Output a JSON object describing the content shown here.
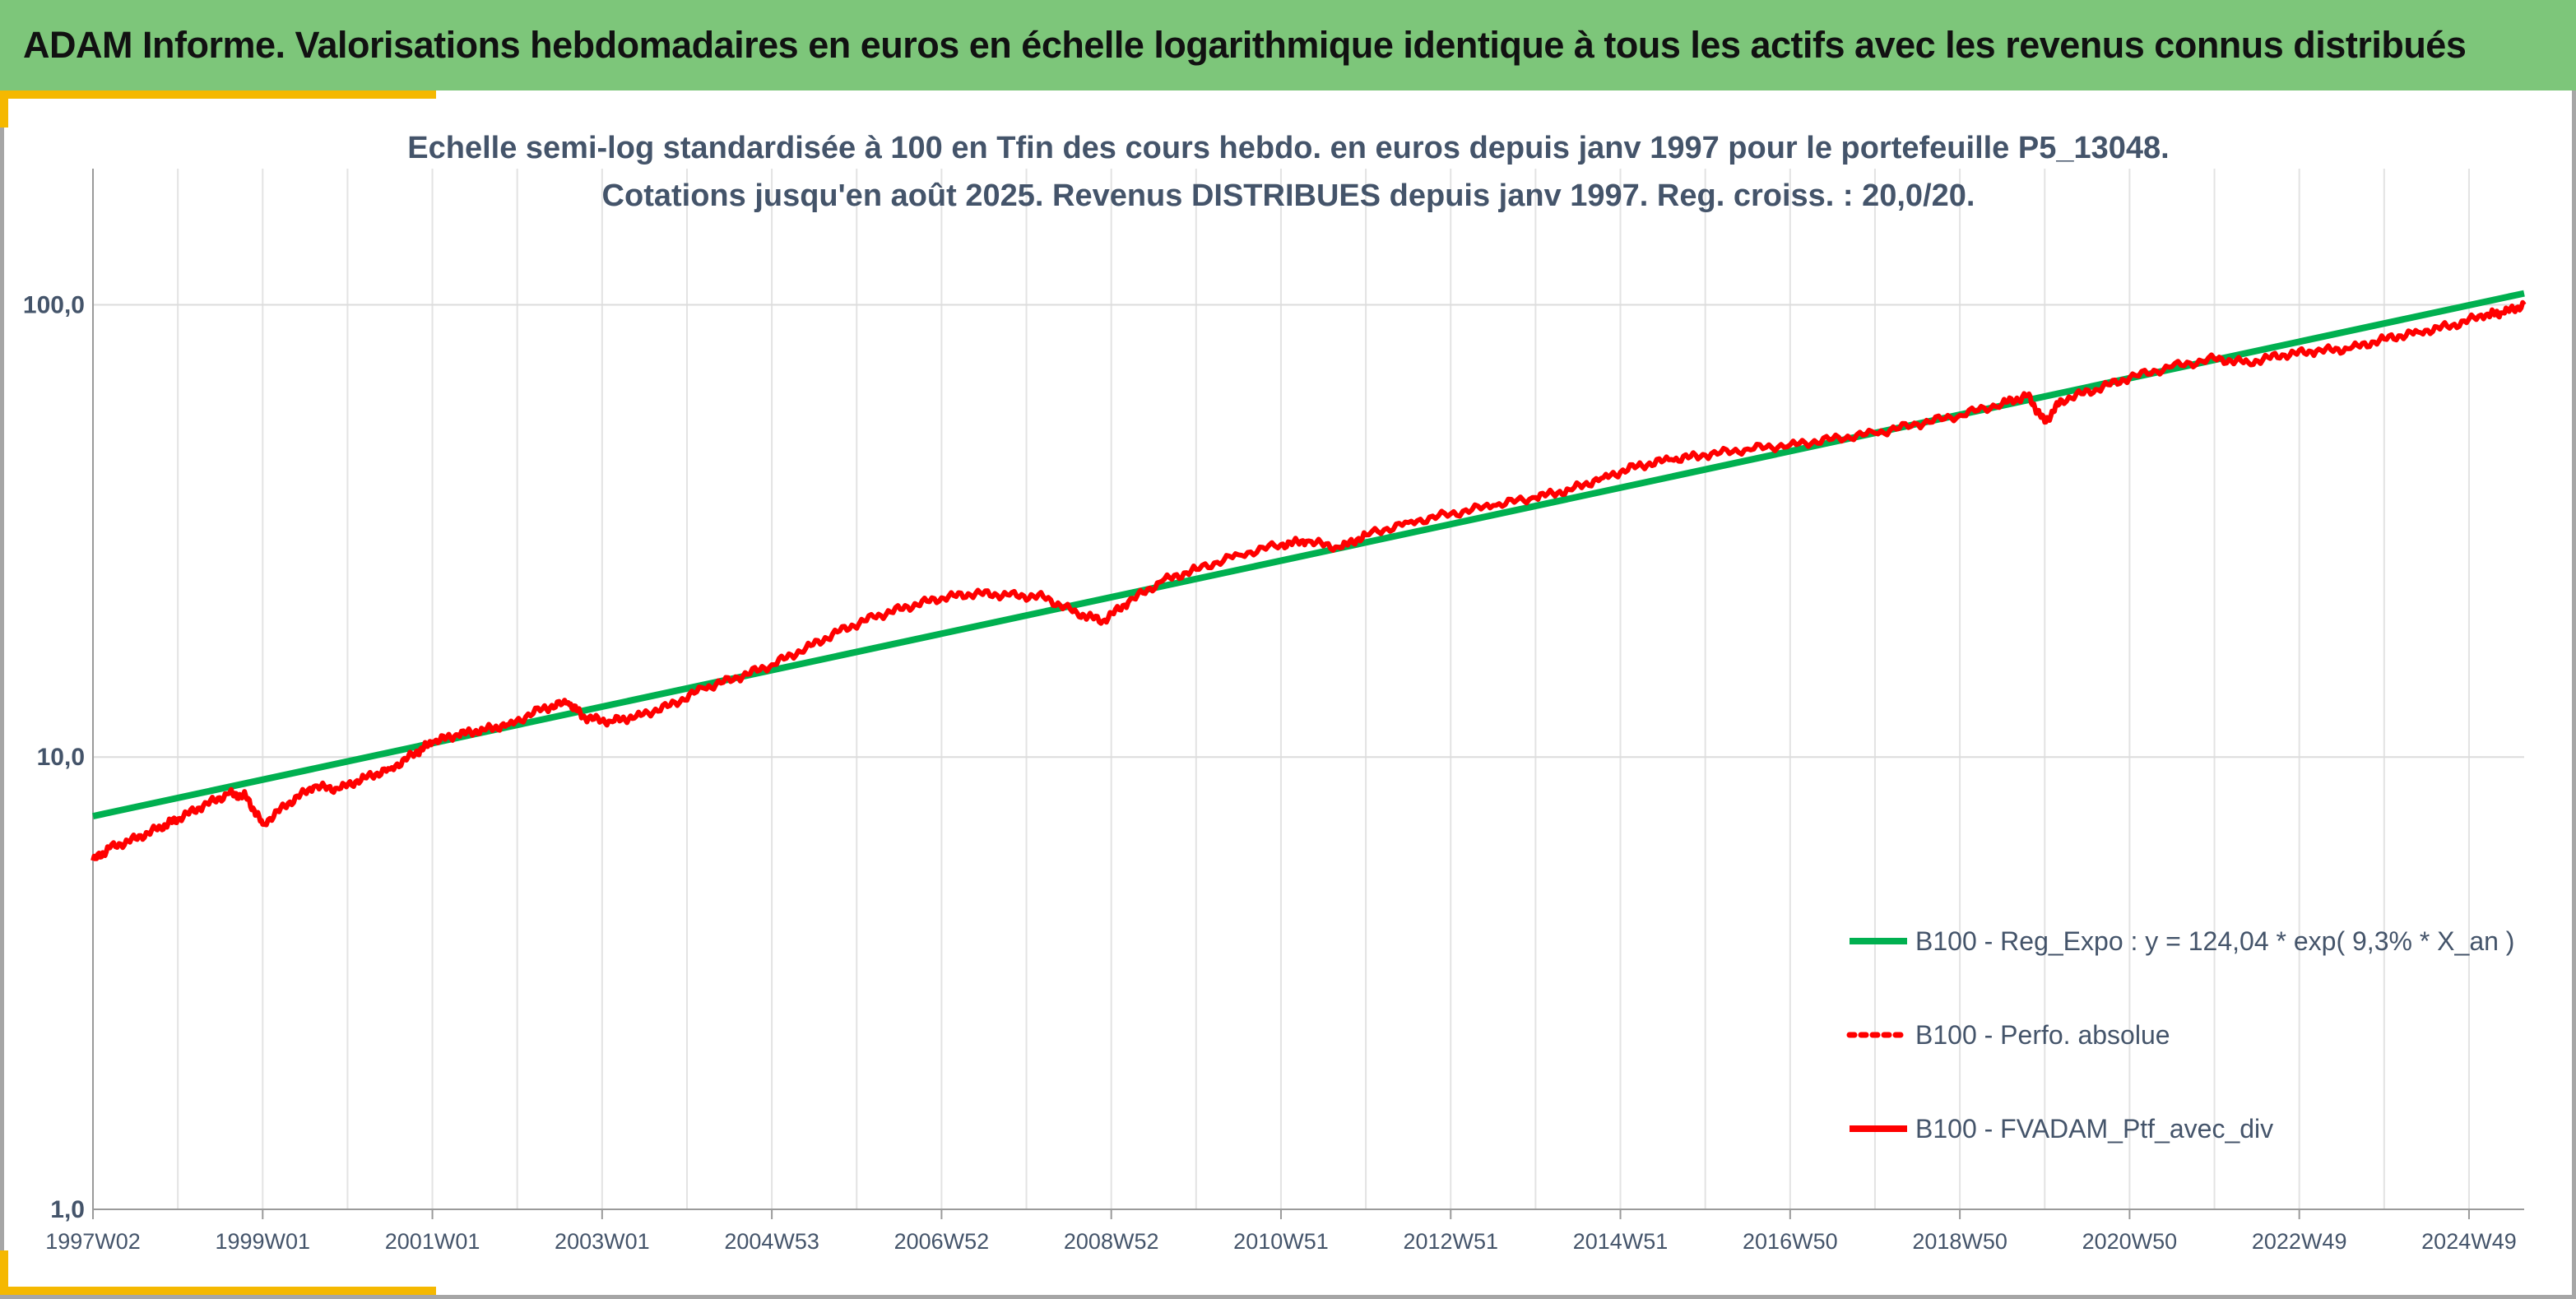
{
  "banner": {
    "title": "ADAM Informe. Valorisations hebdomadaires en euros en échelle logarithmique identique à tous les actifs avec les revenus connus distribués",
    "background_color": "#7dc67a"
  },
  "accent_color": "#f5b800",
  "chart_data": {
    "type": "line",
    "title": "",
    "subtitle_lines": [
      "Echelle semi-log standardisée à 100 en Tfin des cours hebdo. en euros depuis janv 1997 pour le portefeuille P5_13048.",
      "Cotations jusqu'en août 2025. Revenus DISTRIBUES depuis janv 1997. Reg. croiss. : 20,0/20."
    ],
    "y_scale": "log",
    "ylim": [
      1,
      200
    ],
    "y_ticks": [
      {
        "value": 1,
        "label": "1,0"
      },
      {
        "value": 10,
        "label": "10,0"
      },
      {
        "value": 100,
        "label": "100,0"
      }
    ],
    "xlim": [
      1997.0,
      2025.65
    ],
    "x_ticks": [
      {
        "value": 1997.0,
        "label": "1997W02"
      },
      {
        "value": 1999.0,
        "label": "1999W01"
      },
      {
        "value": 2001.0,
        "label": "2001W01"
      },
      {
        "value": 2003.0,
        "label": "2003W01"
      },
      {
        "value": 2005.0,
        "label": "2004W53"
      },
      {
        "value": 2007.0,
        "label": "2006W52"
      },
      {
        "value": 2009.0,
        "label": "2008W52"
      },
      {
        "value": 2011.0,
        "label": "2010W51"
      },
      {
        "value": 2013.0,
        "label": "2012W51"
      },
      {
        "value": 2015.0,
        "label": "2014W51"
      },
      {
        "value": 2017.0,
        "label": "2016W50"
      },
      {
        "value": 2019.0,
        "label": "2018W50"
      },
      {
        "value": 2021.0,
        "label": "2020W50"
      },
      {
        "value": 2023.0,
        "label": "2022W49"
      },
      {
        "value": 2025.0,
        "label": "2024W49"
      }
    ],
    "grid": "vertical",
    "legend_position": "bottom-right",
    "series": [
      {
        "name": "B100 - Reg_Expo : y = 124,04 * exp( 9,3% *  X_an )",
        "color": "#00b050",
        "style": "solid",
        "x": [
          1997.0,
          2025.65
        ],
        "y": [
          7.4,
          106.0
        ]
      },
      {
        "name": "B100 - Perfo. absolue",
        "color": "#ff0000",
        "style": "dotted",
        "x": [],
        "y": []
      },
      {
        "name": "B100 - FVADAM_Ptf_avec_div",
        "color": "#ff0000",
        "style": "solid",
        "x": [
          1997.0,
          1997.2,
          1997.5,
          1997.8,
          1998.0,
          1998.3,
          1998.6,
          1998.8,
          1999.0,
          1999.3,
          1999.6,
          1999.9,
          2000.2,
          2000.5,
          2000.8,
          2001.0,
          2001.3,
          2001.6,
          2001.9,
          2002.3,
          2002.6,
          2002.8,
          2003.1,
          2003.4,
          2003.8,
          2004.2,
          2004.6,
          2005.0,
          2005.4,
          2005.8,
          2006.2,
          2006.6,
          2007.0,
          2007.4,
          2007.8,
          2008.2,
          2008.6,
          2008.9,
          2009.2,
          2009.6,
          2010.0,
          2010.5,
          2011.0,
          2011.3,
          2011.7,
          2012.0,
          2012.5,
          2013.0,
          2013.5,
          2014.0,
          2014.4,
          2014.8,
          2015.2,
          2015.6,
          2016.0,
          2016.5,
          2017.0,
          2017.5,
          2018.0,
          2018.5,
          2019.0,
          2019.5,
          2019.8,
          2020.0,
          2020.2,
          2020.6,
          2021.0,
          2021.5,
          2022.0,
          2022.4,
          2022.8,
          2023.2,
          2023.6,
          2024.0,
          2024.4,
          2024.8,
          2025.2,
          2025.4,
          2025.65
        ],
        "y": [
          5.9,
          6.3,
          6.6,
          7.0,
          7.3,
          7.8,
          8.3,
          8.2,
          7.1,
          7.9,
          8.6,
          8.5,
          9.0,
          9.4,
          10.2,
          10.8,
          11.2,
          11.5,
          11.8,
          12.8,
          13.2,
          12.2,
          12.0,
          12.3,
          13.0,
          14.2,
          15.0,
          16.0,
          17.4,
          19.0,
          20.4,
          21.5,
          22.5,
          23.0,
          22.8,
          22.6,
          20.8,
          20.0,
          22.0,
          24.5,
          26.0,
          28.0,
          29.5,
          30.0,
          29.0,
          31.0,
          33.0,
          34.5,
          36.0,
          37.5,
          39.0,
          41.5,
          44.0,
          45.5,
          46.5,
          48.0,
          49.0,
          50.5,
          52.0,
          54.5,
          57.0,
          60.5,
          63.0,
          55.0,
          61.5,
          65.0,
          69.0,
          73.0,
          76.0,
          74.5,
          77.5,
          79.0,
          80.0,
          84.0,
          87.0,
          90.0,
          95.0,
          96.0,
          100.0
        ]
      }
    ]
  }
}
